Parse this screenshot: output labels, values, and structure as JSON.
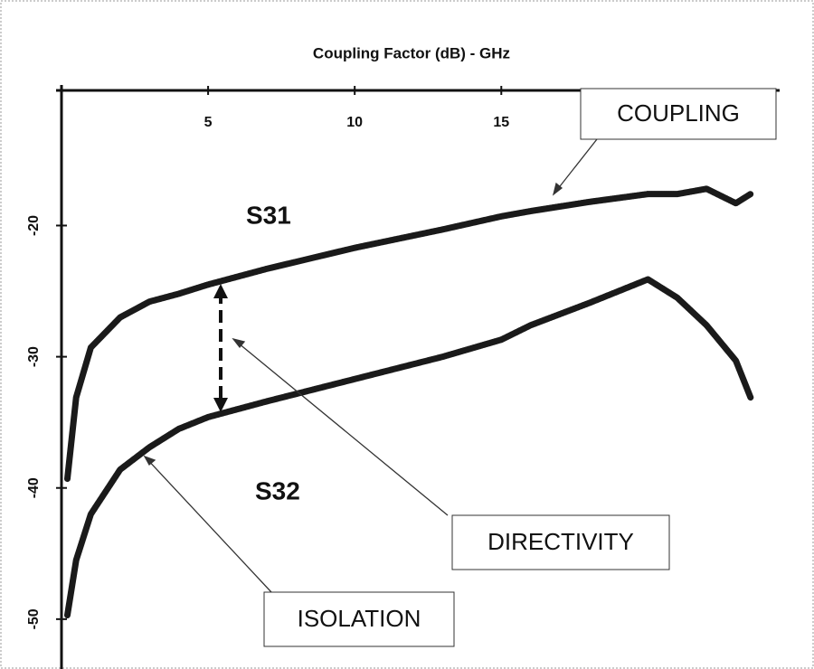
{
  "chart_data": {
    "type": "line",
    "title": "Coupling Factor (dB) - GHz",
    "x": [
      0.2,
      0.5,
      1,
      2,
      3,
      4,
      5,
      7,
      10,
      13,
      15,
      16,
      18,
      20,
      21,
      22,
      23,
      23.5
    ],
    "series": [
      {
        "name": "S31",
        "color": "#1a1a1a",
        "values": [
          -39.3,
          -33.1,
          -29.3,
          -27,
          -25.8,
          -25.2,
          -24.5,
          -23.3,
          -21.7,
          -20.3,
          -19.3,
          -18.9,
          -18.2,
          -17.6,
          -17.6,
          -17.2,
          -18.3,
          -17.6
        ]
      },
      {
        "name": "S32",
        "color": "#1a1a1a",
        "values": [
          -49.7,
          -45.5,
          -42,
          -38.6,
          -36.9,
          -35.5,
          -34.6,
          -33.4,
          -31.7,
          -30,
          -28.7,
          -27.6,
          -25.9,
          -24.1,
          -25.5,
          -27.6,
          -30.3,
          -33.1
        ]
      }
    ],
    "xlim": [
      0,
      24.4
    ],
    "xticks": [
      5,
      10,
      15
    ],
    "ylim": [
      -53.8,
      -9.7
    ],
    "yticks": [
      -20,
      -30,
      -40,
      -50
    ],
    "annotations": [
      "COUPLING",
      "DIRECTIVITY",
      "ISOLATION"
    ]
  }
}
